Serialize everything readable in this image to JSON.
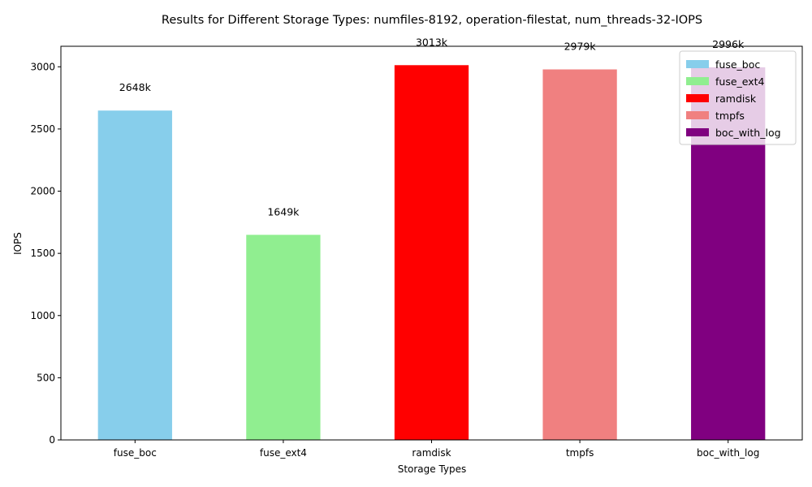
{
  "chart_data": {
    "type": "bar",
    "title": "Results for Different Storage Types: numfiles-8192, operation-filestat, num_threads-32-IOPS",
    "xlabel": "Storage Types",
    "ylabel": "IOPS",
    "categories": [
      "fuse_boc",
      "fuse_ext4",
      "ramdisk",
      "tmpfs",
      "boc_with_log"
    ],
    "values": [
      2648,
      1649,
      3013,
      2979,
      2996
    ],
    "value_labels": [
      "2648k",
      "1649k",
      "3013k",
      "2979k",
      "2996k"
    ],
    "colors": [
      "#87ceeb",
      "#90ee90",
      "#ff0000",
      "#f08080",
      "#800080"
    ],
    "ylim": [
      0,
      3165
    ],
    "yticks": [
      0,
      500,
      1000,
      1500,
      2000,
      2500,
      3000
    ],
    "grid": false,
    "legend": {
      "placement": "top-right",
      "entries": [
        "fuse_boc",
        "fuse_ext4",
        "ramdisk",
        "tmpfs",
        "boc_with_log"
      ]
    }
  }
}
